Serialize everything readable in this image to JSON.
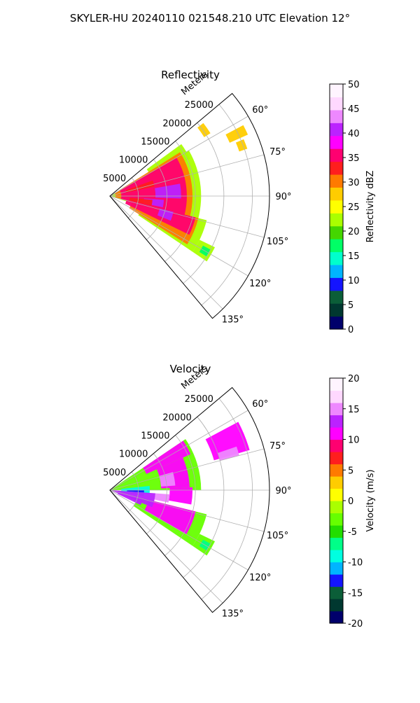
{
  "figure": {
    "title": "SKYLER-HU  20240110  021548.210 UTC Elevation 12°"
  },
  "chart_data": [
    {
      "type": "heatmap",
      "subtype": "polar-sector-ppi",
      "title": "Reflectivity",
      "radial_axis_label": "Meters",
      "r_lim": [
        0,
        28000
      ],
      "r_ticks": [
        5000,
        10000,
        15000,
        20000,
        25000
      ],
      "theta_lim_deg": [
        50,
        140
      ],
      "theta_ticks_deg": [
        60,
        75,
        90,
        105,
        120,
        135
      ],
      "theta_tick_labels": [
        "60°",
        "75°",
        "90°",
        "105°",
        "120°",
        "135°"
      ],
      "grid": true,
      "colorbar": {
        "label": "Reflectivity dBZ",
        "min": 0,
        "max": 50,
        "ticks": [
          0,
          5,
          10,
          15,
          20,
          25,
          30,
          35,
          40,
          45,
          50
        ],
        "stops": [
          "#00006b",
          "#003830",
          "#0b5e38",
          "#1414ff",
          "#00b4ff",
          "#00ffcc",
          "#00ff66",
          "#44d600",
          "#aaff00",
          "#ffff00",
          "#ffcc00",
          "#ff7a00",
          "#ff1e1e",
          "#ff0070",
          "#ff00ff",
          "#bb22ff",
          "#ee88ff",
          "#ffd8ff",
          "#fff4ff"
        ]
      },
      "sectors": [
        {
          "level": 28,
          "segments": [
            [
              52,
              58,
              19500,
              20800
            ],
            [
              62,
              66,
              23000,
              26500
            ],
            [
              67,
              71,
              24000,
              25500
            ]
          ]
        },
        {
          "level": 22,
          "segments": [
            [
              54,
              65,
              8000,
              15500
            ],
            [
              60,
              108,
              0,
              16000
            ],
            [
              104,
              124,
              6000,
              17500
            ],
            [
              116,
              124,
              17500,
              20500
            ]
          ]
        },
        {
          "level": 30,
          "segments": [
            [
              58,
              106,
              1000,
              14500
            ],
            [
              104,
              122,
              4000,
              16000
            ]
          ]
        },
        {
          "level": 36,
          "segments": [
            [
              60,
              104,
              2000,
              13500
            ],
            [
              104,
              116,
              3000,
              15500
            ]
          ]
        },
        {
          "level": 40,
          "segments": [
            [
              80,
              92,
              8000,
              12500
            ],
            [
              94,
              102,
              6000,
              9500
            ],
            [
              104,
              112,
              9000,
              11500
            ]
          ]
        },
        {
          "level": 33,
          "segments": [
            [
              70,
              78,
              3000,
              8000
            ],
            [
              95,
              103,
              3500,
              7500
            ]
          ]
        },
        {
          "level": 18,
          "segments": [
            [
              118,
              122,
              18500,
              20000
            ]
          ]
        }
      ]
    },
    {
      "type": "heatmap",
      "subtype": "polar-sector-ppi",
      "title": "Velocity",
      "radial_axis_label": "Meters",
      "r_lim": [
        0,
        28000
      ],
      "r_ticks": [
        5000,
        10000,
        15000,
        20000,
        25000
      ],
      "theta_lim_deg": [
        50,
        140
      ],
      "theta_ticks_deg": [
        60,
        75,
        90,
        105,
        120,
        135
      ],
      "theta_tick_labels": [
        "60°",
        "75°",
        "90°",
        "105°",
        "120°",
        "135°"
      ],
      "grid": true,
      "colorbar": {
        "label": "Velocity (m/s)",
        "min": -20,
        "max": 20,
        "ticks": [
          -20,
          -15,
          -10,
          -5,
          0,
          5,
          10,
          15,
          20
        ],
        "stops": [
          "#00006b",
          "#003830",
          "#0b5e38",
          "#1414ff",
          "#00b4ff",
          "#00ffe0",
          "#00ff88",
          "#22dd00",
          "#66ff00",
          "#aaff00",
          "#ffff00",
          "#ffcc00",
          "#ff7a00",
          "#ff1e1e",
          "#ff0070",
          "#ff00ff",
          "#bb22ff",
          "#ee88ff",
          "#ffd8ff",
          "#fff4ff"
        ]
      },
      "sectors": [
        {
          "level": -4,
          "segments": [
            [
              56,
              90,
              0,
              16000
            ],
            [
              104,
              124,
              5000,
              17500
            ],
            [
              116,
              124,
              17500,
              20500
            ]
          ]
        },
        {
          "level": 10,
          "segments": [
            [
              56,
              66,
              7000,
              15500
            ],
            [
              62,
              74,
              19000,
              25500
            ],
            [
              66,
              88,
              9000,
              14000
            ],
            [
              88,
              100,
              10500,
              14500
            ],
            [
              104,
              120,
              7000,
              15500
            ]
          ]
        },
        {
          "level": 15,
          "segments": [
            [
              74,
              86,
              9000,
              11500
            ],
            [
              94,
              102,
              8000,
              10500
            ],
            [
              71,
              75,
              20000,
              23500
            ]
          ]
        },
        {
          "level": -10,
          "segments": [
            [
              84,
              96,
              2000,
              7000
            ],
            [
              94,
              100,
              1500,
              6000
            ]
          ]
        },
        {
          "level": -13,
          "segments": [
            [
              90,
              94,
              3000,
              6000
            ]
          ]
        },
        {
          "level": 13,
          "segments": [
            [
              94,
              112,
              0,
              8000
            ],
            [
              104,
              116,
              1500,
              6000
            ]
          ]
        },
        {
          "level": -7,
          "segments": [
            [
              118,
              122,
              18500,
              20000
            ]
          ]
        }
      ]
    }
  ]
}
